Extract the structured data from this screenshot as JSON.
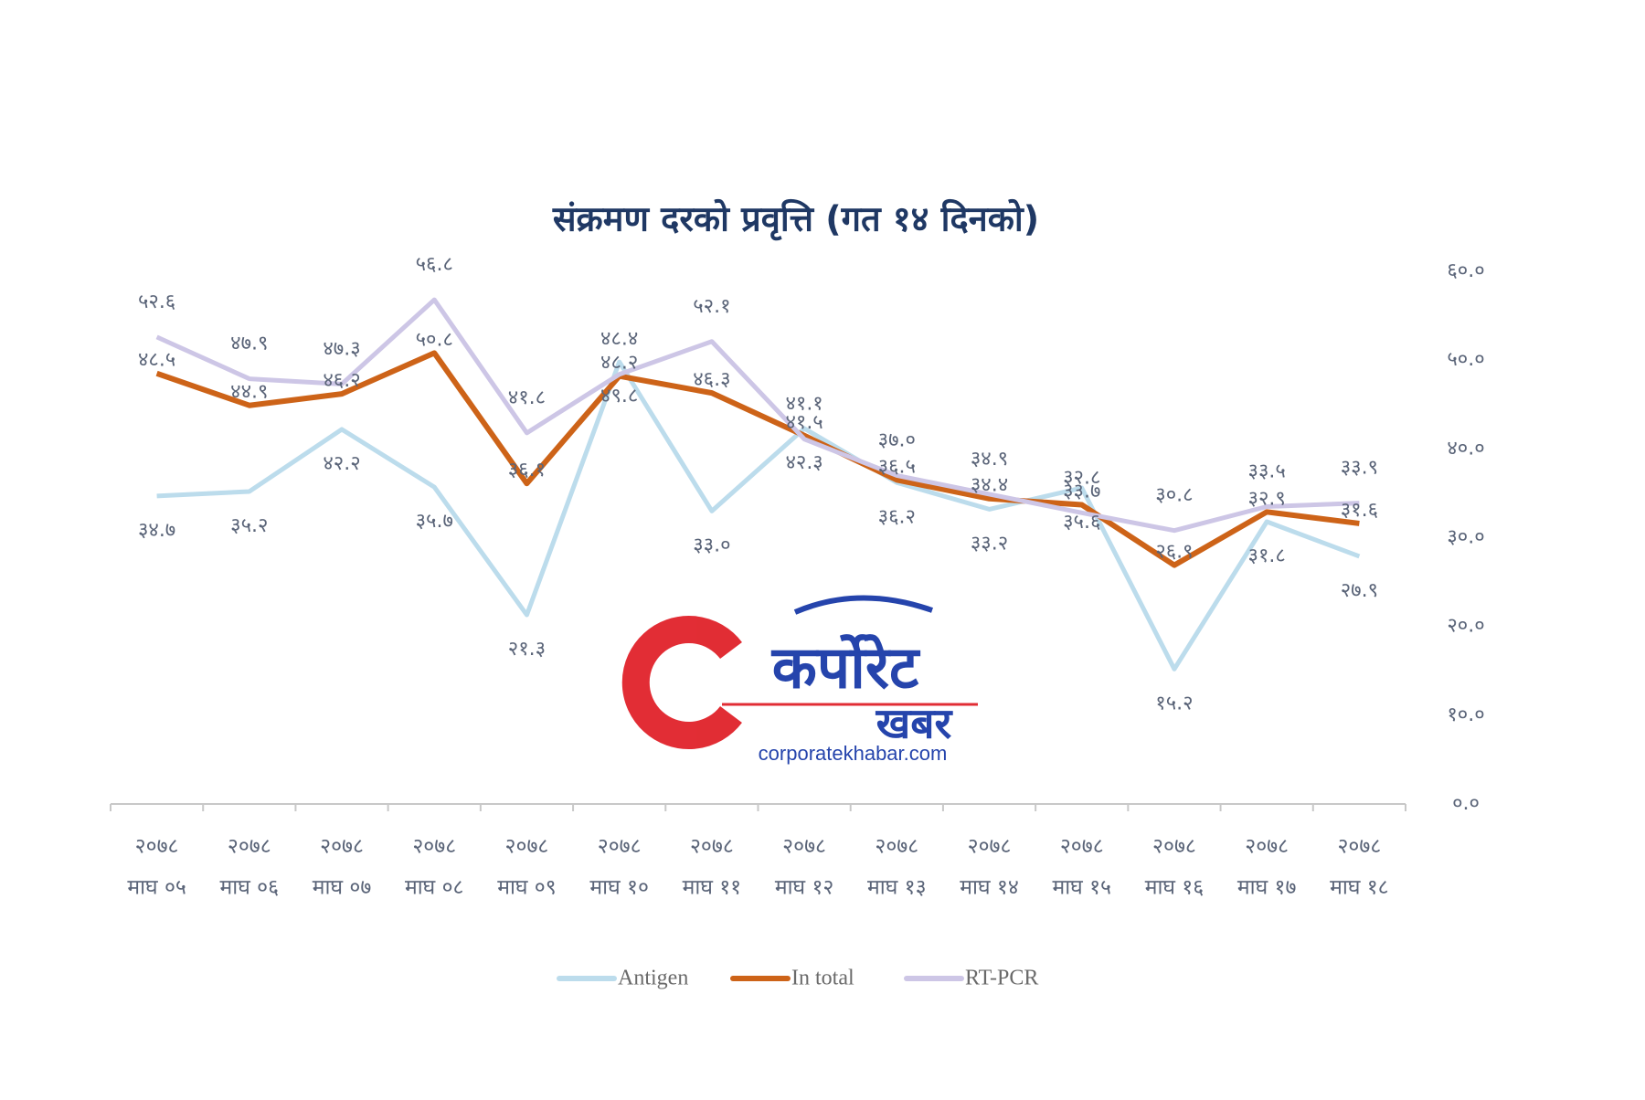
{
  "chart_data": {
    "type": "line",
    "title": "संक्रमण दरको प्रवृत्ति (गत १४ दिनको)",
    "categories": [
      [
        "२०७८",
        "माघ ०५"
      ],
      [
        "२०७८",
        "माघ ०६"
      ],
      [
        "२०७८",
        "माघ ०७"
      ],
      [
        "२०७८",
        "माघ ०८"
      ],
      [
        "२०७८",
        "माघ ०९"
      ],
      [
        "२०७८",
        "माघ १०"
      ],
      [
        "२०७८",
        "माघ ११"
      ],
      [
        "२०७८",
        "माघ १२"
      ],
      [
        "२०७८",
        "माघ १३"
      ],
      [
        "२०७८",
        "माघ १४"
      ],
      [
        "२०७८",
        "माघ १५"
      ],
      [
        "२०७८",
        "माघ १६"
      ],
      [
        "२०७८",
        "माघ १७"
      ],
      [
        "२०७८",
        "माघ १८"
      ]
    ],
    "series": [
      {
        "name": "Antigen",
        "color": "#bcdcec",
        "values": [
          34.7,
          35.2,
          42.2,
          35.7,
          21.3,
          49.8,
          33.0,
          42.3,
          36.2,
          33.2,
          35.6,
          15.2,
          31.8,
          27.9
        ],
        "value_labels": [
          "३४.७",
          "३५.२",
          "४२.२",
          "३५.७",
          "२१.३",
          "४९.८",
          "३३.०",
          "४२.३",
          "३६.२",
          "३३.२",
          "३५.६",
          "१५.२",
          "३१.८",
          "२७.९"
        ]
      },
      {
        "name": "In total",
        "color": "#cd6318",
        "values": [
          48.5,
          44.9,
          46.2,
          50.8,
          36.1,
          48.2,
          46.3,
          41.5,
          36.5,
          34.4,
          33.7,
          26.9,
          32.9,
          31.6
        ],
        "value_labels": [
          "४८.५",
          "४४.९",
          "४६.२",
          "५०.८",
          "३६.१",
          "४८.२",
          "४६.३",
          "४१.५",
          "३६.५",
          "३४.४",
          "३३.७",
          "२६.९",
          "३२.९",
          "३१.६"
        ]
      },
      {
        "name": "RT-PCR",
        "color": "#cdc6e6",
        "values": [
          52.6,
          47.9,
          47.3,
          56.8,
          41.8,
          48.4,
          52.1,
          41.1,
          37.0,
          34.9,
          32.8,
          30.8,
          33.5,
          33.9
        ],
        "value_labels": [
          "५२.६",
          "४७.९",
          "४७.३",
          "५६.८",
          "४१.८",
          "४८.४",
          "५२.१",
          "४१.१",
          "३७.०",
          "३४.९",
          "३२.८",
          "३०.८",
          "३३.५",
          "३३.९"
        ]
      }
    ],
    "ylim": [
      0,
      60
    ],
    "yticks": [
      {
        "value": 0,
        "label": "०.०"
      },
      {
        "value": 10,
        "label": "१०.०"
      },
      {
        "value": 20,
        "label": "२०.०"
      },
      {
        "value": 30,
        "label": "३०.०"
      },
      {
        "value": 40,
        "label": "४०.०"
      },
      {
        "value": 50,
        "label": "५०.०"
      },
      {
        "value": 60,
        "label": "६०.०"
      }
    ],
    "y_axis_side": "right",
    "grid": false,
    "legend": "bottom"
  },
  "logo": {
    "name_top": "कर्पोरेट",
    "name_bottom": "खबर",
    "url": "corporatekhabar.com"
  }
}
